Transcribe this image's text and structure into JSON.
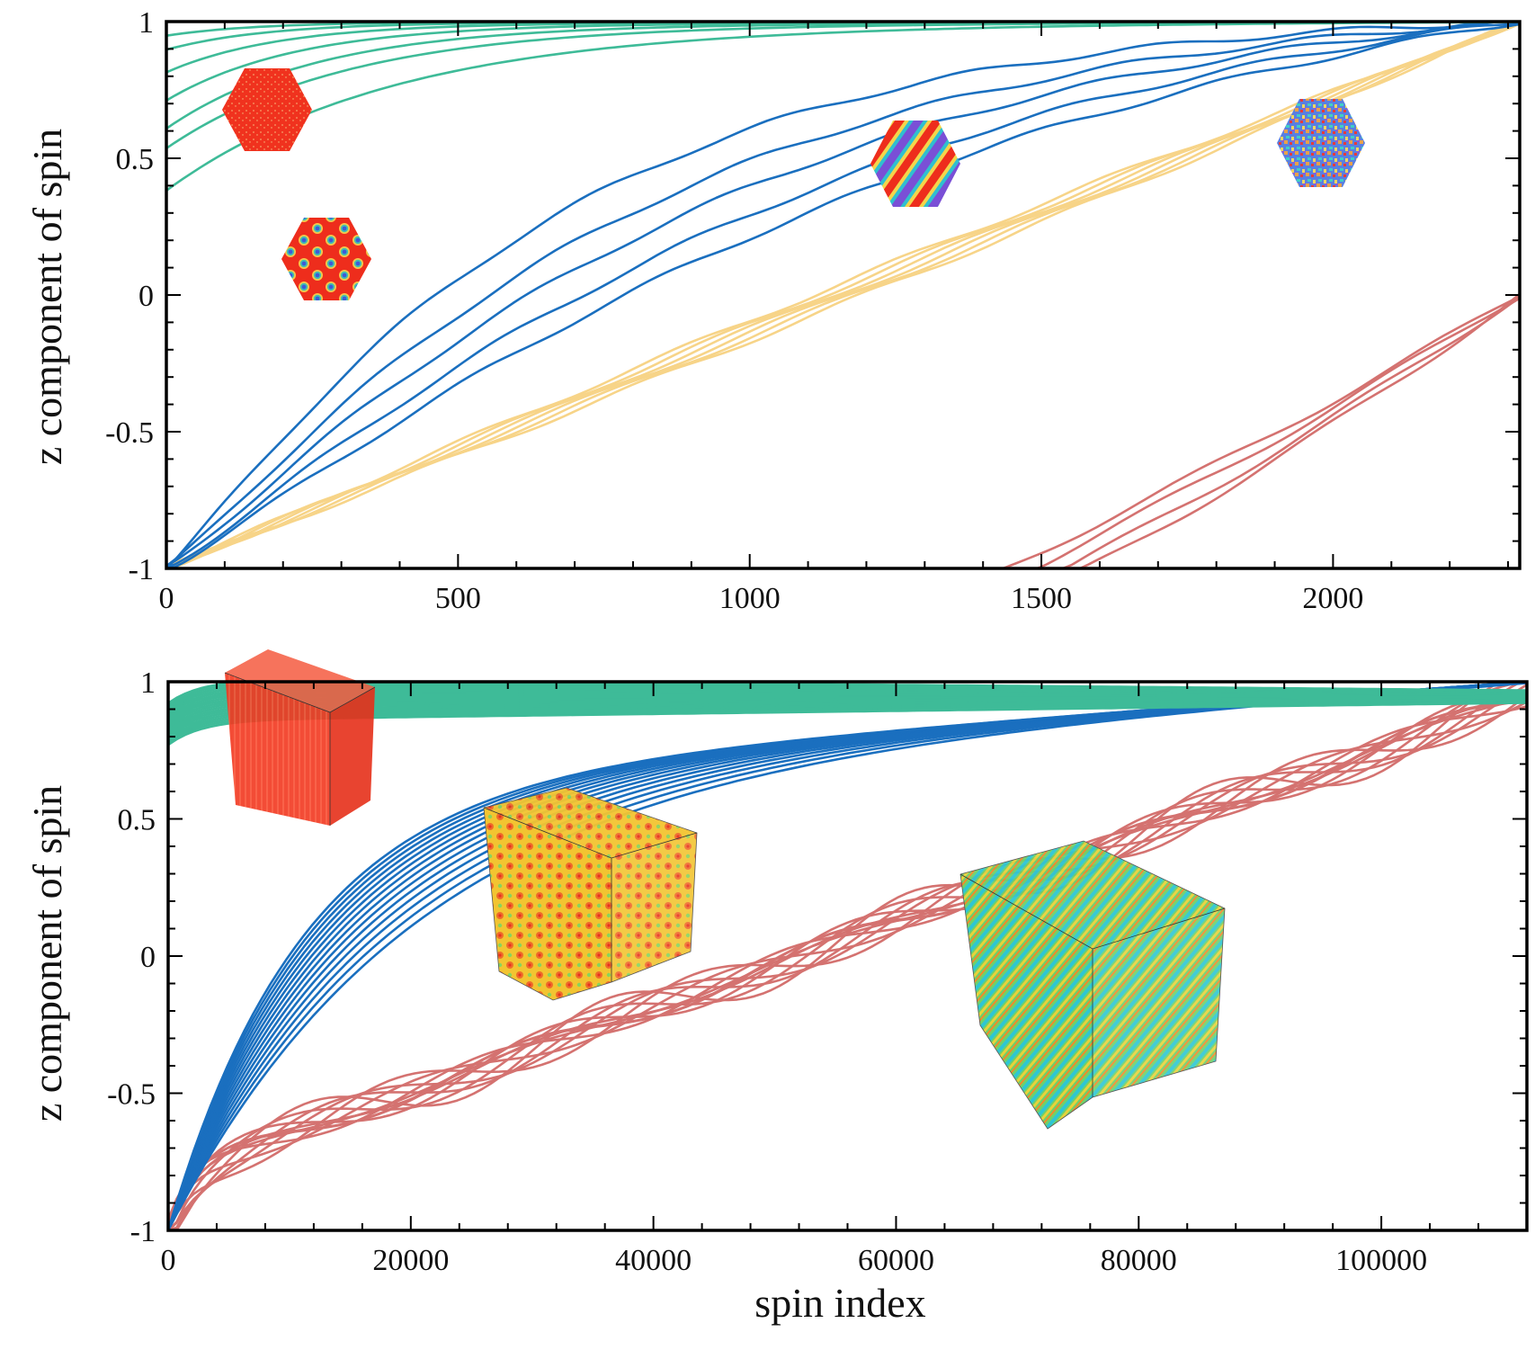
{
  "colors": {
    "teal": "#3ebb98",
    "blue": "#1a6fbf",
    "red": "#d47270",
    "yellow": "#f7d488",
    "hex_red": "#f0321e"
  },
  "chart_data": [
    {
      "type": "line",
      "panel": "top",
      "ylabel": "z component of spin",
      "xlabel": "",
      "xlim": [
        0,
        2320
      ],
      "ylim": [
        -1,
        1
      ],
      "xticks": [
        "0",
        "500",
        "1000",
        "1500",
        "2000"
      ],
      "yticks": [
        "-1",
        "-0.5",
        "0",
        "0.5",
        "1"
      ],
      "series": [
        {
          "name": "teal (ferromagnetic)",
          "color": "teal",
          "count": 7,
          "y_start": [
            0.4,
            0.95
          ],
          "shape": "saturating"
        },
        {
          "name": "blue (skyrmion lattice)",
          "color": "blue",
          "count": 5,
          "y_start": -1,
          "y_end": 1,
          "shape": "concave"
        },
        {
          "name": "red (spiral)",
          "color": "red",
          "count": 4,
          "y_start": -1,
          "y_end": 1,
          "shape": "sigmoid"
        },
        {
          "name": "yellow (disordered)",
          "color": "yellow",
          "count": 6,
          "y_start": -1,
          "y_end": 1,
          "shape": "linear"
        }
      ],
      "insets": [
        "ferromagnetic hexagon",
        "skyrmion hexagon",
        "spiral hexagon",
        "disordered hexagon"
      ]
    },
    {
      "type": "line",
      "panel": "bottom",
      "ylabel": "z component of spin",
      "xlabel": "spin index",
      "xlim": [
        0,
        112000
      ],
      "ylim": [
        -1,
        1
      ],
      "xticks": [
        "0",
        "20000",
        "40000",
        "60000",
        "80000",
        "100000"
      ],
      "yticks": [
        "-1",
        "-0.5",
        "0",
        "0.5",
        "1"
      ],
      "series": [
        {
          "name": "teal band (ferromagnetic)",
          "color": "teal",
          "count": 20,
          "y_start": [
            0.75,
            0.92
          ],
          "shape": "saturating band"
        },
        {
          "name": "blue (skyrmion)",
          "color": "blue",
          "count": 14,
          "y_start": -1,
          "y_end": 1,
          "shape": "concave"
        },
        {
          "name": "red (spiral)",
          "color": "red",
          "count": 12,
          "y_start": -1,
          "y_end": 0.95,
          "shape": "wavy"
        }
      ],
      "insets": [
        "ferromagnetic cube",
        "skyrmion cube",
        "spiral cube"
      ]
    }
  ]
}
